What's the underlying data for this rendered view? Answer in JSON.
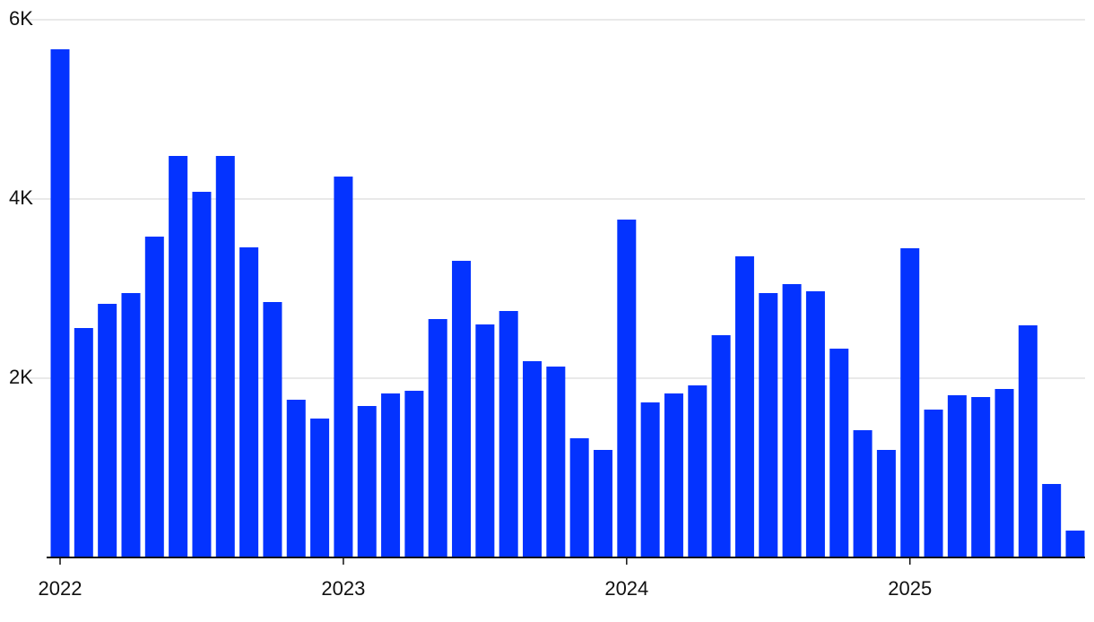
{
  "chart_data": {
    "type": "bar",
    "categories": [
      "2022",
      null,
      null,
      null,
      null,
      null,
      null,
      null,
      null,
      null,
      null,
      null,
      "2023",
      null,
      null,
      null,
      null,
      null,
      null,
      null,
      null,
      null,
      null,
      null,
      "2024",
      null,
      null,
      null,
      null,
      null,
      null,
      null,
      null,
      null,
      null,
      null,
      "2025",
      null,
      null,
      null,
      null,
      null,
      null,
      null
    ],
    "values": [
      5670,
      2560,
      2830,
      2950,
      3580,
      4480,
      4080,
      4480,
      3460,
      2850,
      1760,
      1550,
      4250,
      1690,
      1830,
      1860,
      2660,
      3310,
      2600,
      2750,
      2190,
      2130,
      1330,
      1200,
      3770,
      1730,
      1830,
      1920,
      2480,
      3360,
      2950,
      3050,
      2970,
      2330,
      1420,
      1200,
      3450,
      1650,
      1810,
      1790,
      1880,
      2590,
      820,
      300
    ],
    "color": "#0433ff",
    "ylim": [
      0,
      6000
    ],
    "yticks": [
      {
        "value": 2000,
        "label": "2K"
      },
      {
        "value": 4000,
        "label": "4K"
      },
      {
        "value": 6000,
        "label": "6K"
      }
    ],
    "grid": true
  }
}
